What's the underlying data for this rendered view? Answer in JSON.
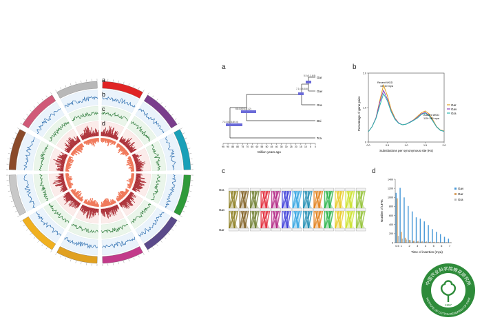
{
  "figure": {
    "panel_letters": {
      "a_circos": "a",
      "b_circos": "b",
      "c_circos": "c",
      "d_circos": "d",
      "a": "a",
      "b": "b",
      "c": "c",
      "d": "d"
    }
  },
  "colors": {
    "blue_track": "#2f6fb0",
    "green_track": "#2d7a3a",
    "red_track": "#a8262e",
    "salmon_track": "#f07a5c",
    "institute_green": "#2e8b3a"
  },
  "circos_chromosomes": [
    {
      "color": "#e02424"
    },
    {
      "color": "#7a3d8c"
    },
    {
      "color": "#1aa0b8"
    },
    {
      "color": "#2f9a3a"
    },
    {
      "color": "#5a4a8a"
    },
    {
      "color": "#c23a8a"
    },
    {
      "color": "#e0a020"
    },
    {
      "color": "#f0b020"
    },
    {
      "color": "#c8c8c8"
    },
    {
      "color": "#8a4a2a"
    },
    {
      "color": "#d05a78"
    },
    {
      "color": "#b8b8b8"
    }
  ],
  "panel_a": {
    "xlabel": "Million years ago",
    "ticks": [
      "95",
      "90",
      "85",
      "80",
      "75",
      "70",
      "65",
      "60",
      "55",
      "50",
      "45",
      "40",
      "35",
      "30",
      "25",
      "20",
      "15",
      "10",
      "5",
      "0"
    ],
    "taxa": [
      "Gar",
      "Gav",
      "Gra",
      "Dsi",
      "Tca"
    ],
    "node_labels": [
      "5.5 (4.1-6.9)",
      "7.1 (4.6-8.4)",
      "66.4 (60.6-71.2)",
      "72.4 (63.6-80.4)"
    ]
  },
  "panel_b": {
    "ylabel": "Percentage of gene pairs",
    "xlabel": "Substitutions per synonymous site (Ks)",
    "yticks": [
      "0",
      "1.0",
      "2.0"
    ],
    "xticks": [
      "0.0",
      "0.5",
      "1.0",
      "1.5",
      "2.0"
    ],
    "annotation_recent": "Recent WGD\n13~20 mya",
    "annotation_ancient": "Ancient WGD\n115~145 mya",
    "legend": [
      "Gar",
      "Gav",
      "Gra"
    ]
  },
  "panel_c": {
    "row_labels": [
      "Gra",
      "Gav",
      "Gar"
    ]
  },
  "panel_d": {
    "ylabel": "Number of LTRs",
    "xlabel": "Time of insertion (mya)",
    "yticks": [
      "0",
      "200",
      "400",
      "600",
      "800",
      "1000",
      "1200",
      "1400"
    ],
    "xticks": [
      "0.5",
      "1",
      "2",
      "3",
      "4",
      "5",
      "6",
      "7"
    ],
    "legend": [
      "Gav",
      "Gar",
      "Gra"
    ]
  },
  "logo": {
    "text_top": "中国农业科学院棉花研究所",
    "text_bottom": "INSTITUTE OF COTTON RESEARCH OF CAAS",
    "year": "1957"
  },
  "chart_data": [
    {
      "type": "line",
      "title": "",
      "xlabel": "Substitutions per synonymous site (Ks)",
      "ylabel": "Percentage of gene pairs",
      "xlim": [
        0,
        2.0
      ],
      "ylim": [
        0,
        2.0
      ],
      "x": [
        0.0,
        0.1,
        0.2,
        0.3,
        0.4,
        0.5,
        0.6,
        0.7,
        0.8,
        0.9,
        1.0,
        1.1,
        1.2,
        1.3,
        1.4,
        1.5,
        1.6,
        1.7,
        1.8,
        1.9,
        2.0
      ],
      "series": [
        {
          "name": "Gar",
          "values": [
            0.3,
            0.45,
            0.7,
            1.2,
            1.65,
            1.35,
            0.95,
            0.7,
            0.55,
            0.5,
            0.52,
            0.58,
            0.65,
            0.75,
            0.85,
            0.9,
            0.82,
            0.65,
            0.45,
            0.35,
            0.32
          ]
        },
        {
          "name": "Gav",
          "values": [
            0.3,
            0.45,
            0.7,
            1.15,
            1.5,
            1.25,
            0.9,
            0.68,
            0.55,
            0.5,
            0.52,
            0.58,
            0.64,
            0.72,
            0.82,
            0.86,
            0.78,
            0.62,
            0.44,
            0.34,
            0.31
          ]
        },
        {
          "name": "Gra",
          "values": [
            0.3,
            0.45,
            0.68,
            1.05,
            1.4,
            1.2,
            0.88,
            0.66,
            0.54,
            0.5,
            0.52,
            0.57,
            0.63,
            0.7,
            0.8,
            0.84,
            0.77,
            0.61,
            0.44,
            0.34,
            0.31
          ]
        }
      ]
    },
    {
      "type": "bar",
      "title": "",
      "xlabel": "Time of insertion (mya)",
      "ylabel": "Number of LTRs",
      "ylim": [
        0,
        1400
      ],
      "categories": [
        "0.5",
        "1",
        "1.5",
        "2",
        "2.5",
        "3",
        "3.5",
        "4",
        "4.5",
        "5",
        "5.5",
        "6",
        "6.5",
        "7"
      ],
      "series": [
        {
          "name": "Gav",
          "values": [
            1100,
            1210,
            1000,
            810,
            690,
            560,
            530,
            470,
            390,
            300,
            240,
            190,
            130,
            90
          ]
        },
        {
          "name": "Gar",
          "values": [
            980,
            240,
            110,
            60,
            40,
            30,
            25,
            20,
            15,
            12,
            10,
            8,
            6,
            5
          ]
        },
        {
          "name": "Gra",
          "values": [
            150,
            90,
            70,
            55,
            45,
            40,
            35,
            30,
            25,
            20,
            18,
            15,
            12,
            10
          ]
        }
      ]
    }
  ]
}
